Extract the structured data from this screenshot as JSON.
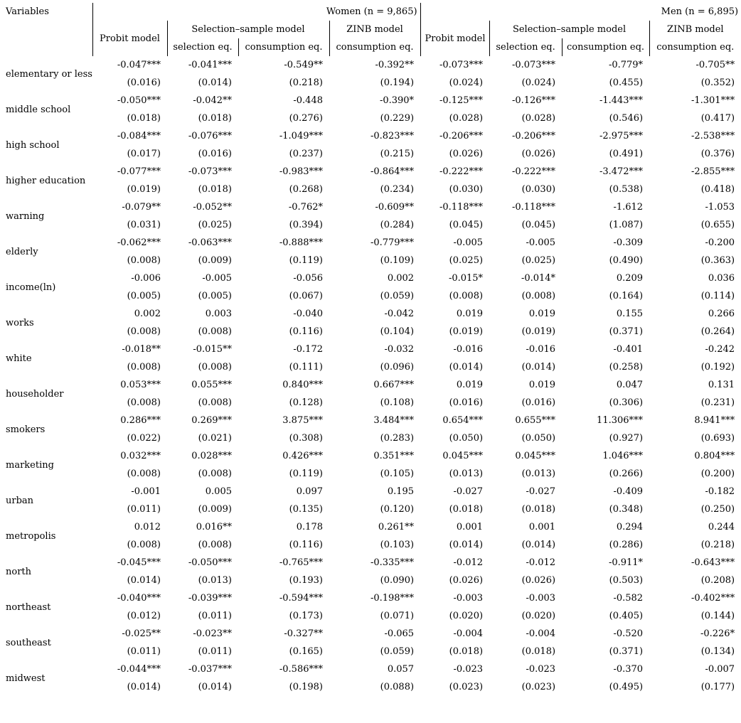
{
  "table": {
    "variables_header": "Variables",
    "groups": [
      {
        "label": "Women (n = 9,865)"
      },
      {
        "label": "Men (n = 6,895)"
      }
    ],
    "models": {
      "probit": "Probit model",
      "selection_sample": "Selection–sample model",
      "zinb": "ZINB model"
    },
    "eq_labels": {
      "selection": "selection eq.",
      "consumption": "consumption eq."
    },
    "columns": [
      "women probit",
      "women selection-sample selection eq.",
      "women selection-sample consumption eq.",
      "women zinb consumption eq.",
      "men probit",
      "men selection-sample selection eq.",
      "men selection-sample consumption eq.",
      "men zinb consumption eq."
    ],
    "rows": [
      {
        "variable": "elementary or less",
        "coefs": [
          "-0.047***",
          "-0.041***",
          "-0.549**",
          "-0.392**",
          "-0.073***",
          "-0.073***",
          "-0.779*",
          "-0.705**"
        ],
        "ses": [
          "(0.016)",
          "(0.014)",
          "(0.218)",
          "(0.194)",
          "(0.024)",
          "(0.024)",
          "(0.455)",
          "(0.352)"
        ]
      },
      {
        "variable": "middle school",
        "coefs": [
          "-0.050***",
          "-0.042**",
          "-0.448",
          "-0.390*",
          "-0.125***",
          "-0.126***",
          "-1.443***",
          "-1.301***"
        ],
        "ses": [
          "(0.018)",
          "(0.018)",
          "(0.276)",
          "(0.229)",
          "(0.028)",
          "(0.028)",
          "(0.546)",
          "(0.417)"
        ]
      },
      {
        "variable": "high school",
        "coefs": [
          "-0.084***",
          "-0.076***",
          "-1.049***",
          "-0.823***",
          "-0.206***",
          "-0.206***",
          "-2.975***",
          "-2.538***"
        ],
        "ses": [
          "(0.017)",
          "(0.016)",
          "(0.237)",
          "(0.215)",
          "(0.026)",
          "(0.026)",
          "(0.491)",
          "(0.376)"
        ]
      },
      {
        "variable": "higher education",
        "coefs": [
          "-0.077***",
          "-0.073***",
          "-0.983***",
          "-0.864***",
          "-0.222***",
          "-0.222***",
          "-3.472***",
          "-2.855***"
        ],
        "ses": [
          "(0.019)",
          "(0.018)",
          "(0.268)",
          "(0.234)",
          "(0.030)",
          "(0.030)",
          "(0.538)",
          "(0.418)"
        ]
      },
      {
        "variable": "warning",
        "coefs": [
          "-0.079**",
          "-0.052**",
          "-0.762*",
          "-0.609**",
          "-0.118***",
          "-0.118***",
          "-1.612",
          "-1.053"
        ],
        "ses": [
          "(0.031)",
          "(0.025)",
          "(0.394)",
          "(0.284)",
          "(0.045)",
          "(0.045)",
          "(1.087)",
          "(0.655)"
        ]
      },
      {
        "variable": "elderly",
        "coefs": [
          "-0.062***",
          "-0.063***",
          "-0.888***",
          "-0.779***",
          "-0.005",
          "-0.005",
          "-0.309",
          "-0.200"
        ],
        "ses": [
          "(0.008)",
          "(0.009)",
          "(0.119)",
          "(0.109)",
          "(0.025)",
          "(0.025)",
          "(0.490)",
          "(0.363)"
        ]
      },
      {
        "variable": "income(ln)",
        "coefs": [
          "-0.006",
          "-0.005",
          "-0.056",
          "0.002",
          "-0.015*",
          "-0.014*",
          "0.209",
          "0.036"
        ],
        "ses": [
          "(0.005)",
          "(0.005)",
          "(0.067)",
          "(0.059)",
          "(0.008)",
          "(0.008)",
          "(0.164)",
          "(0.114)"
        ]
      },
      {
        "variable": "works",
        "coefs": [
          "0.002",
          "0.003",
          "-0.040",
          "-0.042",
          "0.019",
          "0.019",
          "0.155",
          "0.266"
        ],
        "ses": [
          "(0.008)",
          "(0.008)",
          "(0.116)",
          "(0.104)",
          "(0.019)",
          "(0.019)",
          "(0.371)",
          "(0.264)"
        ]
      },
      {
        "variable": "white",
        "coefs": [
          "-0.018**",
          "-0.015**",
          "-0.172",
          "-0.032",
          "-0.016",
          "-0.016",
          "-0.401",
          "-0.242"
        ],
        "ses": [
          "(0.008)",
          "(0.008)",
          "(0.111)",
          "(0.096)",
          "(0.014)",
          "(0.014)",
          "(0.258)",
          "(0.192)"
        ]
      },
      {
        "variable": "householder",
        "coefs": [
          "0.053***",
          "0.055***",
          "0.840***",
          "0.667***",
          "0.019",
          "0.019",
          "0.047",
          "0.131"
        ],
        "ses": [
          "(0.008)",
          "(0.008)",
          "(0.128)",
          "(0.108)",
          "(0.016)",
          "(0.016)",
          "(0.306)",
          "(0.231)"
        ]
      },
      {
        "variable": "smokers",
        "coefs": [
          "0.286***",
          "0.269***",
          "3.875***",
          "3.484***",
          "0.654***",
          "0.655***",
          "11.306***",
          "8.941***"
        ],
        "ses": [
          "(0.022)",
          "(0.021)",
          "(0.308)",
          "(0.283)",
          "(0.050)",
          "(0.050)",
          "(0.927)",
          "(0.693)"
        ]
      },
      {
        "variable": "marketing",
        "coefs": [
          "0.032***",
          "0.028***",
          "0.426***",
          "0.351***",
          "0.045***",
          "0.045***",
          "1.046***",
          "0.804***"
        ],
        "ses": [
          "(0.008)",
          "(0.008)",
          "(0.119)",
          "(0.105)",
          "(0.013)",
          "(0.013)",
          "(0.266)",
          "(0.200)"
        ]
      },
      {
        "variable": "urban",
        "coefs": [
          "-0.001",
          "0.005",
          "0.097",
          "0.195",
          "-0.027",
          "-0.027",
          "-0.409",
          "-0.182"
        ],
        "ses": [
          "(0.011)",
          "(0.009)",
          "(0.135)",
          "(0.120)",
          "(0.018)",
          "(0.018)",
          "(0.348)",
          "(0.250)"
        ]
      },
      {
        "variable": "metropolis",
        "coefs": [
          "0.012",
          "0.016**",
          "0.178",
          "0.261**",
          "0.001",
          "0.001",
          "0.294",
          "0.244"
        ],
        "ses": [
          "(0.008)",
          "(0.008)",
          "(0.116)",
          "(0.103)",
          "(0.014)",
          "(0.014)",
          "(0.286)",
          "(0.218)"
        ]
      },
      {
        "variable": "north",
        "coefs": [
          "-0.045***",
          "-0.050***",
          "-0.765***",
          "-0.335***",
          "-0.012",
          "-0.012",
          "-0.911*",
          "-0.643***"
        ],
        "ses": [
          "(0.014)",
          "(0.013)",
          "(0.193)",
          "(0.090)",
          "(0.026)",
          "(0.026)",
          "(0.503)",
          "(0.208)"
        ]
      },
      {
        "variable": "northeast",
        "coefs": [
          "-0.040***",
          "-0.039***",
          "-0.594***",
          "-0.198***",
          "-0.003",
          "-0.003",
          "-0.582",
          "-0.402***"
        ],
        "ses": [
          "(0.012)",
          "(0.011)",
          "(0.173)",
          "(0.071)",
          "(0.020)",
          "(0.020)",
          "(0.405)",
          "(0.144)"
        ]
      },
      {
        "variable": "southeast",
        "coefs": [
          "-0.025**",
          "-0.023**",
          "-0.327**",
          "-0.065",
          "-0.004",
          "-0.004",
          "-0.520",
          "-0.226*"
        ],
        "ses": [
          "(0.011)",
          "(0.011)",
          "(0.165)",
          "(0.059)",
          "(0.018)",
          "(0.018)",
          "(0.371)",
          "(0.134)"
        ]
      },
      {
        "variable": "midwest",
        "coefs": [
          "-0.044***",
          "-0.037***",
          "-0.586***",
          "0.057",
          "-0.023",
          "-0.023",
          "-0.370",
          "-0.007"
        ],
        "ses": [
          "(0.014)",
          "(0.014)",
          "(0.198)",
          "(0.088)",
          "(0.023)",
          "(0.023)",
          "(0.495)",
          "(0.177)"
        ]
      }
    ]
  }
}
